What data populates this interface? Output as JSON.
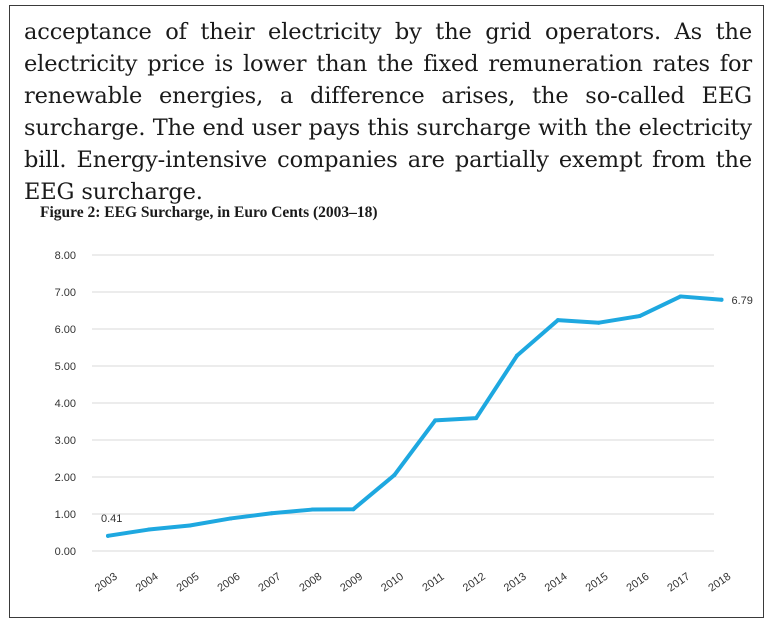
{
  "paragraph": "acceptance of their electricity by the grid operators. As the electricity price is lower than the fixed remuneration rates for renewable energies, a difference arises, the so-called EEG surcharge. The end user pays this surcharge with the electricity bill. Energy-intensive companies are partially exempt from the EEG surcharge.",
  "figure": {
    "title": "Figure 2: EEG Surcharge, in Euro Cents (2003–18)"
  },
  "chart_data": {
    "type": "line",
    "title": "Figure 2: EEG Surcharge, in Euro Cents (2003–18)",
    "xlabel": "",
    "ylabel": "",
    "x": [
      "2003",
      "2004",
      "2005",
      "2006",
      "2007",
      "2008",
      "2009",
      "2010",
      "2011",
      "2012",
      "2013",
      "2014",
      "2015",
      "2016",
      "2017",
      "2018"
    ],
    "series": [
      {
        "name": "",
        "color": "#1ea8e0",
        "values": [
          0.41,
          0.58,
          0.69,
          0.88,
          1.02,
          1.12,
          1.13,
          2.05,
          3.53,
          3.59,
          5.28,
          6.24,
          6.17,
          6.35,
          6.88,
          6.79
        ]
      }
    ],
    "yticks": [
      "0.00",
      "1.00",
      "2.00",
      "3.00",
      "4.00",
      "5.00",
      "6.00",
      "7.00",
      "8.00"
    ],
    "ylim": [
      0,
      8
    ],
    "grid": true,
    "legend": "none",
    "data_labels": [
      {
        "index": 0,
        "text": "0.41"
      },
      {
        "index": 15,
        "text": "6.79"
      }
    ]
  }
}
